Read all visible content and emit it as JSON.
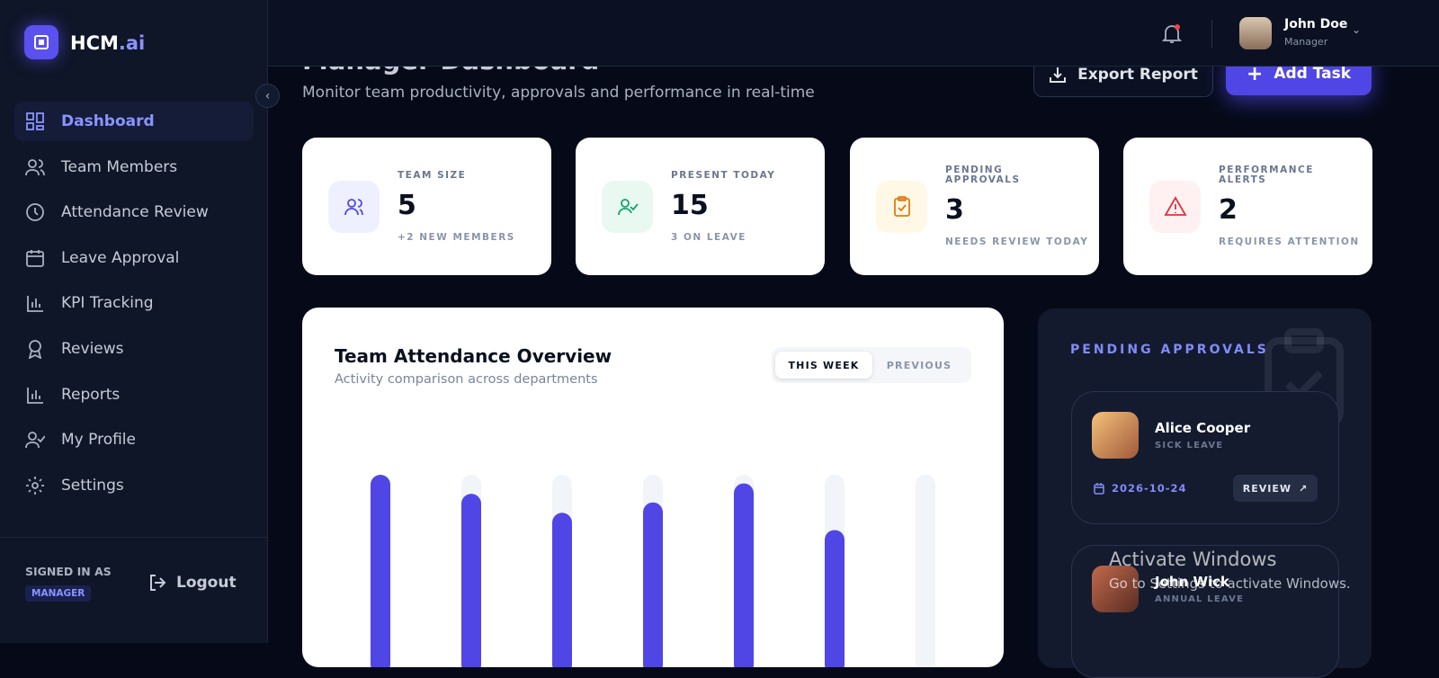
{
  "brand": {
    "name": "HCM",
    "suffix": ".ai"
  },
  "nav": [
    "Dashboard",
    "Team Members",
    "Attendance Review",
    "Leave Approval",
    "KPI Tracking",
    "Reviews",
    "Reports",
    "My Profile",
    "Settings"
  ],
  "signed_in": {
    "label": "SIGNED IN AS",
    "role": "MANAGER",
    "logout": "Logout"
  },
  "user": {
    "name": "John Doe",
    "role": "Manager"
  },
  "header": {
    "title": "Manager Dashboard",
    "subtitle": "Monitor team productivity, approvals and performance in real-time",
    "export": "Export Report",
    "add": "Add Task"
  },
  "stats": [
    {
      "label": "TEAM SIZE",
      "value": 5,
      "note": "+2 NEW MEMBERS"
    },
    {
      "label": "PRESENT TODAY",
      "value": 15,
      "note": "3 ON LEAVE"
    },
    {
      "label": "PENDING APPROVALS",
      "value": 3,
      "note": "NEEDS REVIEW TODAY"
    },
    {
      "label": "PERFORMANCE ALERTS",
      "value": 2,
      "note": "REQUIRES ATTENTION"
    }
  ],
  "chart_data": {
    "type": "bar",
    "title": "Team Attendance Overview",
    "subtitle": "Activity comparison across departments",
    "tabs": [
      "THIS WEEK",
      "PREVIOUS"
    ],
    "values": [
      100,
      89,
      78,
      84,
      95,
      68,
      0
    ],
    "ylim": [
      0,
      100
    ],
    "color": "#4f46e5",
    "track_color": "#f1f4f9"
  },
  "approvals": {
    "title": "PENDING APPROVALS",
    "items": [
      {
        "name": "Alice Cooper",
        "type": "SICK LEAVE",
        "date": "2026-10-24",
        "action": "REVIEW"
      },
      {
        "name": "John Wick",
        "type": "ANNUAL LEAVE"
      }
    ]
  },
  "watermark": {
    "title": "Activate Windows",
    "text": "Go to Settings to activate Windows."
  }
}
